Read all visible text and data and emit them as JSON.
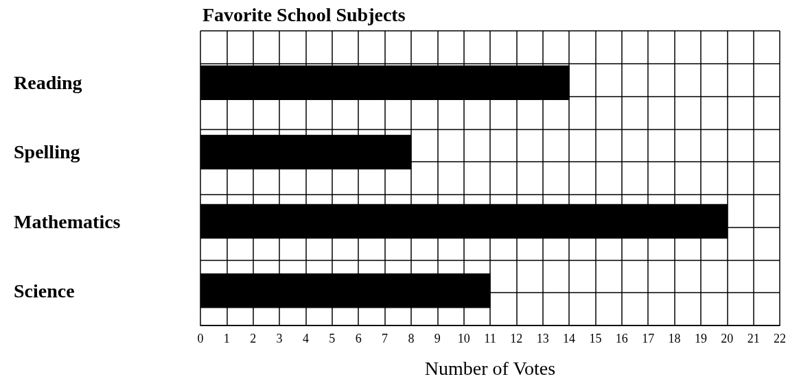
{
  "chart_data": {
    "type": "bar",
    "orientation": "horizontal",
    "title": "Favorite School Subjects",
    "xlabel": "Number of Votes",
    "categories": [
      "Reading",
      "Spelling",
      "Mathematics",
      "Science"
    ],
    "values": [
      14,
      8,
      20,
      11
    ],
    "color": "#000000",
    "xlim": [
      0,
      22
    ],
    "xticks": [
      0,
      1,
      2,
      3,
      4,
      5,
      6,
      7,
      8,
      9,
      10,
      11,
      12,
      13,
      14,
      15,
      16,
      17,
      18,
      19,
      20,
      21,
      22
    ],
    "grid": true
  }
}
